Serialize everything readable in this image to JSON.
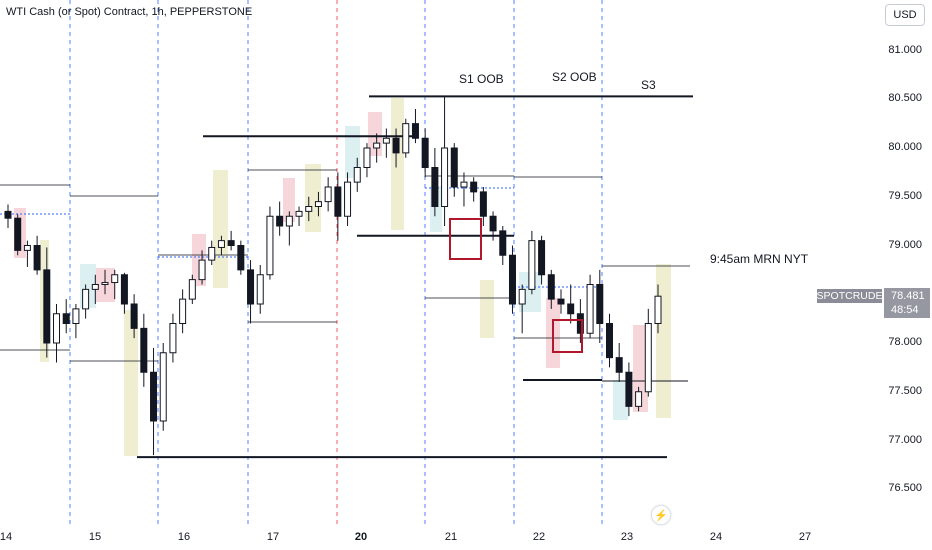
{
  "header": {
    "title": "WTI Cash (or Spot) Contract, 1h, PEPPERSTONE",
    "currency_button": "USD"
  },
  "price_scale": {
    "symbol": "SPOTCRUDE",
    "last_price": "78.481",
    "countdown": "48:54",
    "colors": {
      "up": "#131722",
      "down": "#131722",
      "grid_dashed": "#2962ff",
      "session_divider": "#f23645"
    }
  },
  "annotations": {
    "s1": "S1 OOB",
    "s2": "S2 OOB",
    "s3": "S3",
    "note": "9:45am MRN NYT"
  },
  "chart_data": {
    "type": "candlestick",
    "title": "WTI Cash (or Spot) Contract, 1h, PEPPERSTONE",
    "yticks": [
      "81.000",
      "80.500",
      "80.000",
      "79.500",
      "79.000",
      "78.500",
      "78.000",
      "77.500",
      "77.000",
      "76.500"
    ],
    "ylim": [
      76.3,
      81.3
    ],
    "xticks": [
      {
        "label": "14",
        "bold": false
      },
      {
        "label": "15",
        "bold": false
      },
      {
        "label": "16",
        "bold": false
      },
      {
        "label": "17",
        "bold": false
      },
      {
        "label": "20",
        "bold": true
      },
      {
        "label": "21",
        "bold": false
      },
      {
        "label": "22",
        "bold": false
      },
      {
        "label": "23",
        "bold": false
      },
      {
        "label": "24",
        "bold": false
      },
      {
        "label": "27",
        "bold": false
      }
    ],
    "levels": [
      {
        "name": "high-80.53",
        "price": 80.53
      },
      {
        "name": "high-80.12",
        "price": 80.12
      },
      {
        "name": "mid-79.10",
        "price": 79.1
      },
      {
        "name": "low-77.62",
        "price": 77.62
      },
      {
        "name": "low-76.83",
        "price": 76.83
      }
    ],
    "candles": [
      [
        79.35,
        79.42,
        79.18,
        79.28
      ],
      [
        79.28,
        79.32,
        78.9,
        78.95
      ],
      [
        78.95,
        79.05,
        78.78,
        79.0
      ],
      [
        79.0,
        79.1,
        78.7,
        78.75
      ],
      [
        78.75,
        78.98,
        77.85,
        78.0
      ],
      [
        78.0,
        78.4,
        77.8,
        78.3
      ],
      [
        78.3,
        78.45,
        78.1,
        78.2
      ],
      [
        78.2,
        78.4,
        78.05,
        78.35
      ],
      [
        78.35,
        78.6,
        78.25,
        78.55
      ],
      [
        78.55,
        78.7,
        78.4,
        78.6
      ],
      [
        78.6,
        78.75,
        78.5,
        78.62
      ],
      [
        78.62,
        78.75,
        78.45,
        78.7
      ],
      [
        78.7,
        78.72,
        78.3,
        78.4
      ],
      [
        78.4,
        78.5,
        78.05,
        78.15
      ],
      [
        78.15,
        78.3,
        77.55,
        77.7
      ],
      [
        77.7,
        77.95,
        76.85,
        77.2
      ],
      [
        77.2,
        78.0,
        77.1,
        77.9
      ],
      [
        77.9,
        78.3,
        77.8,
        78.2
      ],
      [
        78.2,
        78.55,
        78.1,
        78.45
      ],
      [
        78.45,
        78.7,
        78.4,
        78.65
      ],
      [
        78.65,
        78.95,
        78.6,
        78.85
      ],
      [
        78.85,
        79.05,
        78.8,
        78.98
      ],
      [
        78.98,
        79.1,
        78.9,
        79.05
      ],
      [
        79.05,
        79.15,
        78.95,
        79.0
      ],
      [
        79.0,
        79.05,
        78.7,
        78.75
      ],
      [
        78.75,
        78.85,
        78.2,
        78.4
      ],
      [
        78.4,
        78.8,
        78.3,
        78.7
      ],
      [
        78.7,
        79.4,
        78.65,
        79.3
      ],
      [
        79.3,
        79.45,
        79.1,
        79.2
      ],
      [
        79.2,
        79.35,
        79.0,
        79.3
      ],
      [
        79.3,
        79.4,
        79.2,
        79.35
      ],
      [
        79.35,
        79.5,
        79.25,
        79.4
      ],
      [
        79.4,
        79.55,
        79.3,
        79.45
      ],
      [
        79.45,
        79.7,
        79.35,
        79.6
      ],
      [
        79.6,
        79.75,
        79.05,
        79.3
      ],
      [
        79.3,
        79.75,
        79.2,
        79.65
      ],
      [
        79.65,
        79.9,
        79.55,
        79.8
      ],
      [
        79.8,
        80.05,
        79.7,
        80.0
      ],
      [
        80.0,
        80.15,
        79.85,
        80.05
      ],
      [
        80.05,
        80.2,
        79.9,
        80.1
      ],
      [
        80.1,
        80.2,
        79.8,
        79.95
      ],
      [
        79.95,
        80.3,
        79.9,
        80.25
      ],
      [
        80.25,
        80.4,
        80.05,
        80.1
      ],
      [
        80.1,
        80.2,
        79.7,
        79.8
      ],
      [
        79.8,
        80.0,
        79.3,
        79.4
      ],
      [
        79.4,
        80.53,
        79.2,
        80.0
      ],
      [
        80.0,
        80.05,
        79.5,
        79.6
      ],
      [
        79.6,
        79.75,
        79.4,
        79.65
      ],
      [
        79.65,
        79.7,
        79.45,
        79.55
      ],
      [
        79.55,
        79.6,
        79.2,
        79.3
      ],
      [
        79.3,
        79.35,
        79.05,
        79.15
      ],
      [
        79.15,
        79.2,
        78.8,
        78.9
      ],
      [
        78.9,
        79.0,
        78.3,
        78.4
      ],
      [
        78.4,
        78.6,
        78.1,
        78.55
      ],
      [
        78.55,
        79.15,
        78.5,
        79.05
      ],
      [
        79.05,
        79.1,
        78.6,
        78.7
      ],
      [
        78.7,
        78.75,
        78.35,
        78.45
      ],
      [
        78.45,
        78.55,
        78.3,
        78.4
      ],
      [
        78.4,
        78.6,
        78.2,
        78.3
      ],
      [
        78.3,
        78.45,
        78.0,
        78.1
      ],
      [
        78.1,
        78.7,
        78.05,
        78.6
      ],
      [
        78.6,
        78.75,
        78.0,
        78.2
      ],
      [
        78.2,
        78.3,
        77.75,
        77.85
      ],
      [
        77.85,
        78.0,
        77.6,
        77.7
      ],
      [
        77.7,
        77.8,
        77.25,
        77.35
      ],
      [
        77.35,
        77.55,
        77.3,
        77.5
      ],
      [
        77.5,
        78.35,
        77.45,
        78.2
      ],
      [
        78.2,
        78.6,
        78.1,
        78.48
      ]
    ]
  }
}
